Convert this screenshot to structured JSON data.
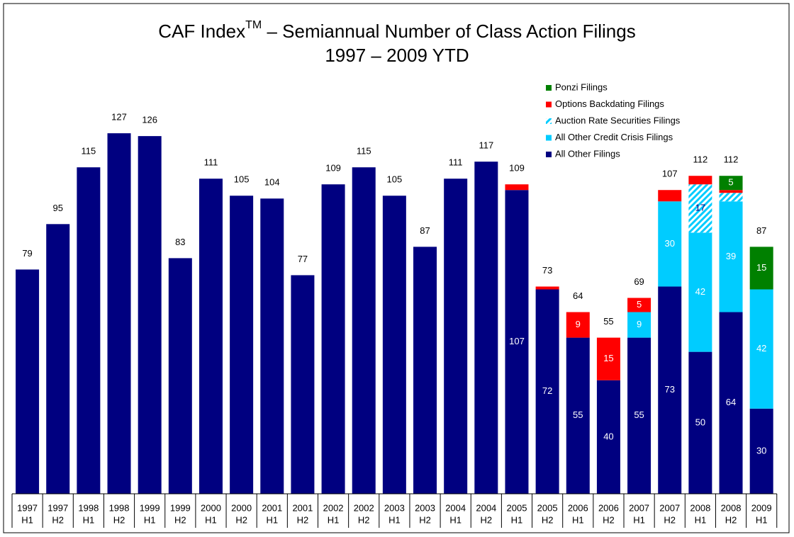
{
  "chart_data": {
    "type": "stacked_bar",
    "title": {
      "main": "CAF Index",
      "superscript": "TM",
      "rest": " – Semiannual Number of Class Action Filings"
    },
    "subtitle": "1997 – 2009 YTD",
    "categories": [
      [
        "1997",
        "H1"
      ],
      [
        "1997",
        "H2"
      ],
      [
        "1998",
        "H1"
      ],
      [
        "1998",
        "H2"
      ],
      [
        "1999",
        "H1"
      ],
      [
        "1999",
        "H2"
      ],
      [
        "2000",
        "H1"
      ],
      [
        "2000",
        "H2"
      ],
      [
        "2001",
        "H1"
      ],
      [
        "2001",
        "H2"
      ],
      [
        "2002",
        "H1"
      ],
      [
        "2002",
        "H2"
      ],
      [
        "2003",
        "H1"
      ],
      [
        "2003",
        "H2"
      ],
      [
        "2004",
        "H1"
      ],
      [
        "2004",
        "H2"
      ],
      [
        "2005",
        "H1"
      ],
      [
        "2005",
        "H2"
      ],
      [
        "2006",
        "H1"
      ],
      [
        "2006",
        "H2"
      ],
      [
        "2007",
        "H1"
      ],
      [
        "2007",
        "H2"
      ],
      [
        "2008",
        "H1"
      ],
      [
        "2008",
        "H2"
      ],
      [
        "2009",
        "H1"
      ]
    ],
    "totals": [
      79,
      95,
      115,
      127,
      126,
      83,
      111,
      105,
      104,
      77,
      109,
      115,
      105,
      87,
      111,
      117,
      109,
      73,
      64,
      55,
      69,
      107,
      112,
      112,
      87
    ],
    "series": [
      {
        "name": "All Other Filings",
        "color": "#000080",
        "values": [
          79,
          95,
          115,
          127,
          126,
          83,
          111,
          105,
          104,
          77,
          109,
          115,
          105,
          87,
          111,
          117,
          107,
          72,
          55,
          40,
          55,
          73,
          50,
          64,
          30
        ],
        "value_labels": [
          null,
          null,
          null,
          null,
          null,
          null,
          null,
          null,
          null,
          null,
          null,
          null,
          null,
          null,
          null,
          null,
          "107",
          "72",
          "55",
          "40",
          "55",
          "73",
          "50",
          "64",
          "30"
        ]
      },
      {
        "name": "All Other Credit Crisis Filings",
        "color": "#00ccff",
        "values": [
          0,
          0,
          0,
          0,
          0,
          0,
          0,
          0,
          0,
          0,
          0,
          0,
          0,
          0,
          0,
          0,
          0,
          0,
          0,
          0,
          9,
          30,
          42,
          39,
          42
        ],
        "value_labels": [
          null,
          null,
          null,
          null,
          null,
          null,
          null,
          null,
          null,
          null,
          null,
          null,
          null,
          null,
          null,
          null,
          null,
          null,
          null,
          null,
          "9",
          "30",
          "42",
          "39",
          "42"
        ]
      },
      {
        "name": "Auction Rate Securities Filings",
        "color": "#00ccff",
        "pattern": "hatch",
        "values": [
          0,
          0,
          0,
          0,
          0,
          0,
          0,
          0,
          0,
          0,
          0,
          0,
          0,
          0,
          0,
          0,
          0,
          0,
          0,
          0,
          0,
          0,
          17,
          3,
          0
        ],
        "value_labels": [
          null,
          null,
          null,
          null,
          null,
          null,
          null,
          null,
          null,
          null,
          null,
          null,
          null,
          null,
          null,
          null,
          null,
          null,
          null,
          null,
          null,
          null,
          "17",
          null,
          null
        ]
      },
      {
        "name": "Options Backdating Filings",
        "color": "#ff0000",
        "values": [
          0,
          0,
          0,
          0,
          0,
          0,
          0,
          0,
          0,
          0,
          0,
          0,
          0,
          0,
          0,
          0,
          2,
          1,
          9,
          15,
          5,
          4,
          3,
          1,
          0
        ],
        "value_labels": [
          null,
          null,
          null,
          null,
          null,
          null,
          null,
          null,
          null,
          null,
          null,
          null,
          null,
          null,
          null,
          null,
          null,
          null,
          "9",
          "15",
          "5",
          null,
          null,
          null,
          null
        ]
      },
      {
        "name": "Ponzi Filings",
        "color": "#008000",
        "values": [
          0,
          0,
          0,
          0,
          0,
          0,
          0,
          0,
          0,
          0,
          0,
          0,
          0,
          0,
          0,
          0,
          0,
          0,
          0,
          0,
          0,
          0,
          0,
          5,
          15
        ],
        "value_labels": [
          null,
          null,
          null,
          null,
          null,
          null,
          null,
          null,
          null,
          null,
          null,
          null,
          null,
          null,
          null,
          null,
          null,
          null,
          null,
          null,
          null,
          null,
          null,
          "5",
          "15"
        ]
      }
    ],
    "ylim": [
      0,
      140
    ]
  }
}
